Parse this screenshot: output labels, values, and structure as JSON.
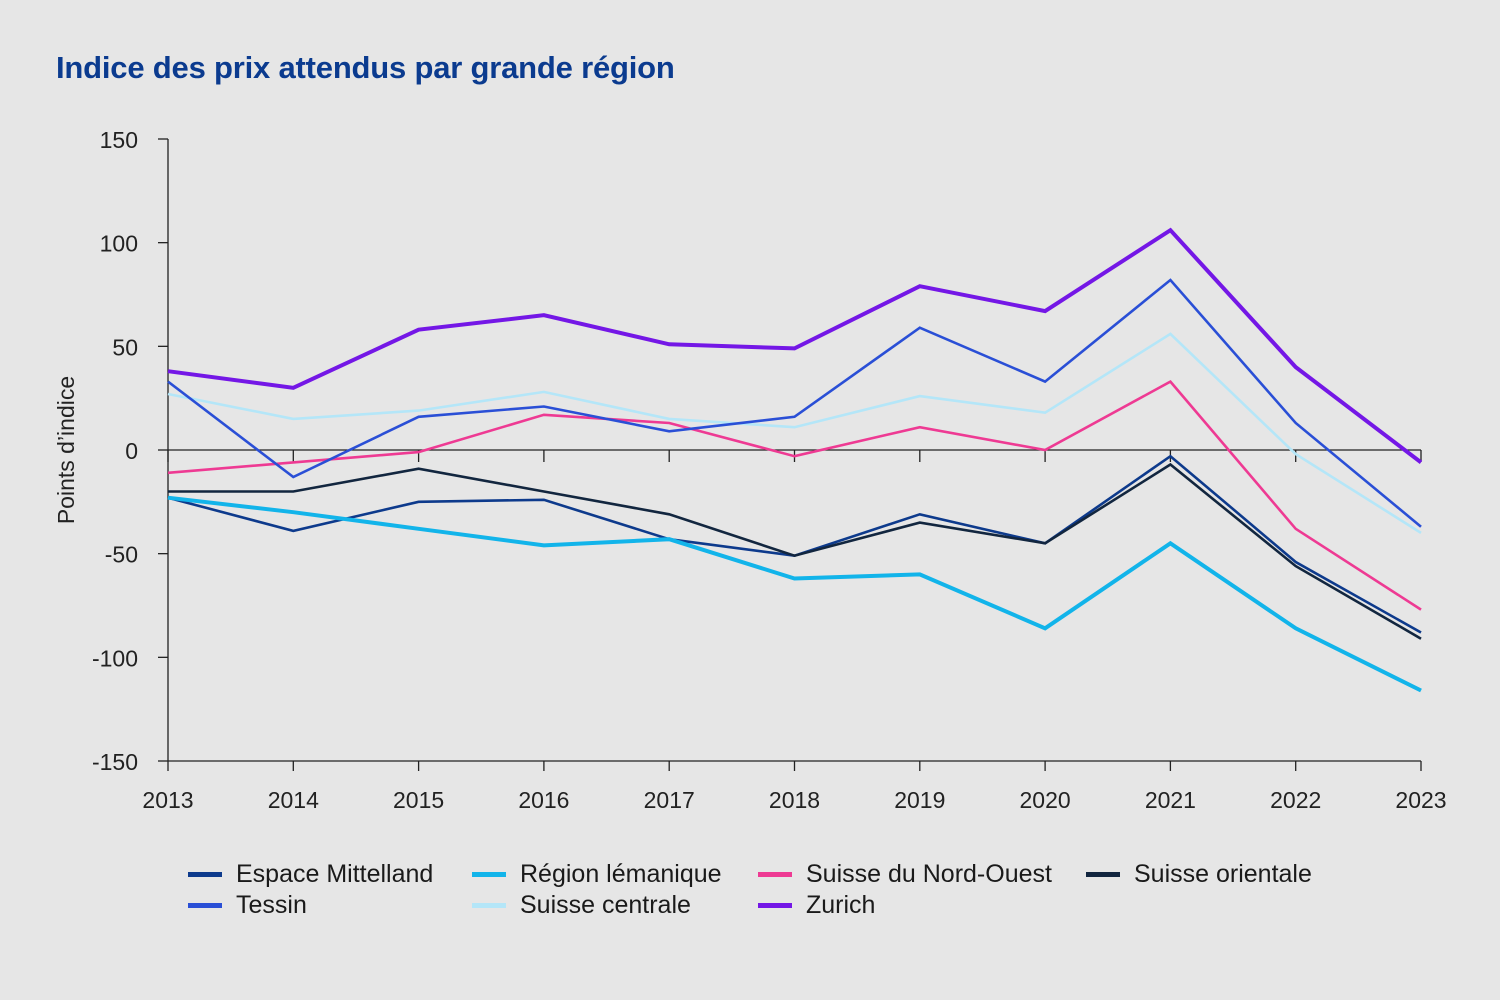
{
  "chart_data": {
    "type": "line",
    "title": "Indice des prix attendus par grande région",
    "xlabel": "",
    "ylabel": "Points d’indice",
    "ylim": [
      -150,
      150
    ],
    "yticks": [
      "150",
      "100",
      "50",
      "0",
      "-50",
      "-100",
      "-150"
    ],
    "x": [
      "2013",
      "2014",
      "2015",
      "2016",
      "2017",
      "2018",
      "2019",
      "2020",
      "2021",
      "2022",
      "2023"
    ],
    "grid": false,
    "legend_position": "bottom",
    "series": [
      {
        "name": "Espace Mittelland",
        "color": "#0d3a8c",
        "values": [
          -23,
          -39,
          -25,
          -24,
          -43,
          -51,
          -31,
          -45,
          -3,
          -54,
          -88
        ]
      },
      {
        "name": "Région lémanique",
        "color": "#12b4ea",
        "values": [
          -23,
          -30,
          -38,
          -46,
          -43,
          -62,
          -60,
          -86,
          -45,
          -86,
          -116
        ]
      },
      {
        "name": "Suisse du Nord-Ouest",
        "color": "#ee3a93",
        "values": [
          -11,
          -6,
          -1,
          17,
          13,
          -3,
          11,
          0,
          33,
          -38,
          -77
        ]
      },
      {
        "name": "Suisse orientale",
        "color": "#12263f",
        "values": [
          -20,
          -20,
          -9,
          -20,
          -31,
          -51,
          -35,
          -45,
          -7,
          -56,
          -91
        ]
      },
      {
        "name": "Tessin",
        "color": "#2a4fd6",
        "values": [
          33,
          -13,
          16,
          21,
          9,
          16,
          59,
          33,
          82,
          13,
          -37
        ]
      },
      {
        "name": "Suisse centrale",
        "color": "#b4e6f8",
        "values": [
          27,
          15,
          19,
          28,
          15,
          11,
          26,
          18,
          56,
          -2,
          -40
        ]
      },
      {
        "name": "Zurich",
        "color": "#7417e6",
        "values": [
          38,
          30,
          58,
          65,
          51,
          49,
          79,
          67,
          106,
          40,
          -6
        ]
      }
    ]
  }
}
